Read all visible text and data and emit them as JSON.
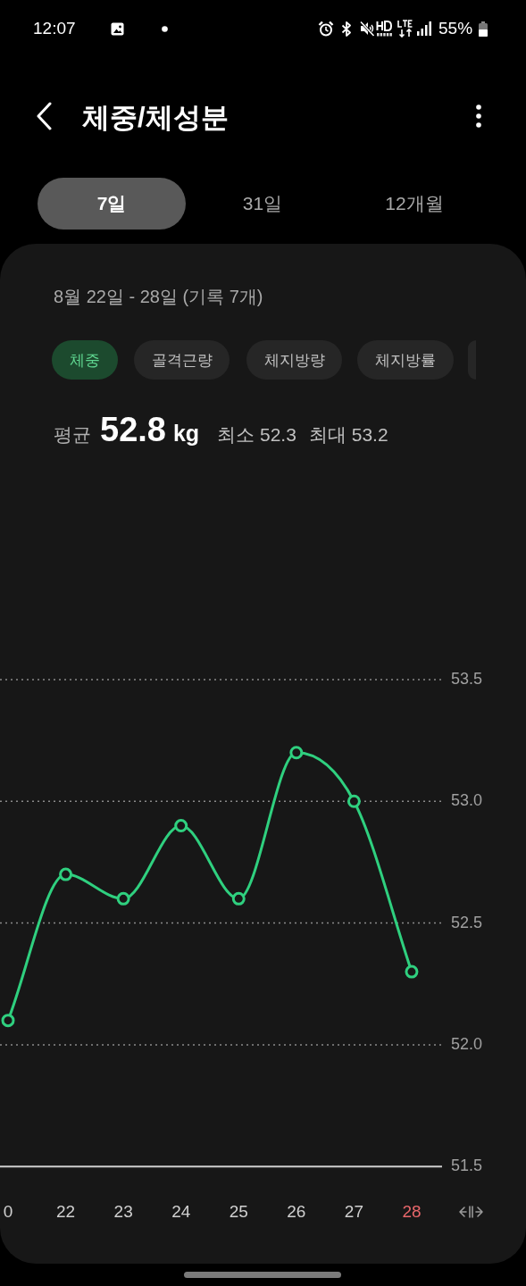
{
  "chart_data": {
    "type": "line",
    "title": "체중/체성분",
    "subtitle": "8월 22일 - 28일 (기록 7개)",
    "annotations": [
      "12:07",
      "55%",
      "7일",
      "31일",
      "12개월",
      "체중",
      "골격근량",
      "체지방량",
      "체지방률",
      "평균",
      "52.8",
      "kg",
      "최소 52.3",
      "최대 53.2"
    ],
    "categories": [
      "0",
      "22",
      "23",
      "24",
      "25",
      "26",
      "27",
      "28"
    ],
    "values": [
      52.1,
      52.7,
      52.6,
      52.9,
      52.6,
      53.2,
      53.0,
      52.3
    ],
    "color": "#2fd07f",
    "ylim": [
      51.5,
      53.5
    ],
    "yticks": [
      51.5,
      {
        "value": 52,
        "label": "52.0"
      },
      52.5,
      {
        "value": 53,
        "label": "53.0"
      },
      53.5
    ],
    "grid": "y",
    "marker": "circle",
    "line_style": "solid"
  }
}
